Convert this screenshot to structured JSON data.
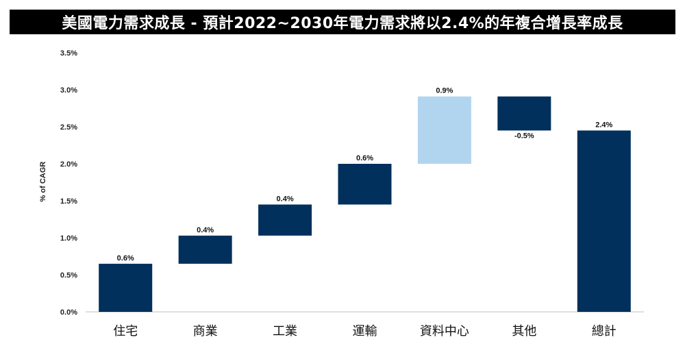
{
  "title": "美國電力需求成長 - 預計2022~2030年電力需求將以2.4%的年複合增長率成長",
  "chart_data": {
    "type": "bar",
    "subtype": "waterfall",
    "ylabel": "% of CAGR",
    "ylim": [
      0,
      3.5
    ],
    "yticks": [
      "0.0%",
      "0.5%",
      "1.0%",
      "1.5%",
      "2.0%",
      "2.5%",
      "3.0%",
      "3.5%"
    ],
    "grid": false,
    "bars": [
      {
        "category": "住宅",
        "start": 0.0,
        "end": 0.65,
        "label": "0.6%",
        "color": "#00305b"
      },
      {
        "category": "商業",
        "start": 0.65,
        "end": 1.03,
        "label": "0.4%",
        "color": "#00305b"
      },
      {
        "category": "工業",
        "start": 1.03,
        "end": 1.45,
        "label": "0.4%",
        "color": "#00305b"
      },
      {
        "category": "運輸",
        "start": 1.45,
        "end": 2.0,
        "label": "0.6%",
        "color": "#00305b"
      },
      {
        "category": "資料中心",
        "start": 2.0,
        "end": 2.91,
        "label": "0.9%",
        "color": "#b2d5ef"
      },
      {
        "category": "其他",
        "start": 2.91,
        "end": 2.45,
        "label": "-0.5%",
        "color": "#00305b"
      },
      {
        "category": "總計",
        "start": 0.0,
        "end": 2.45,
        "label": "2.4%",
        "color": "#00305b"
      }
    ]
  }
}
